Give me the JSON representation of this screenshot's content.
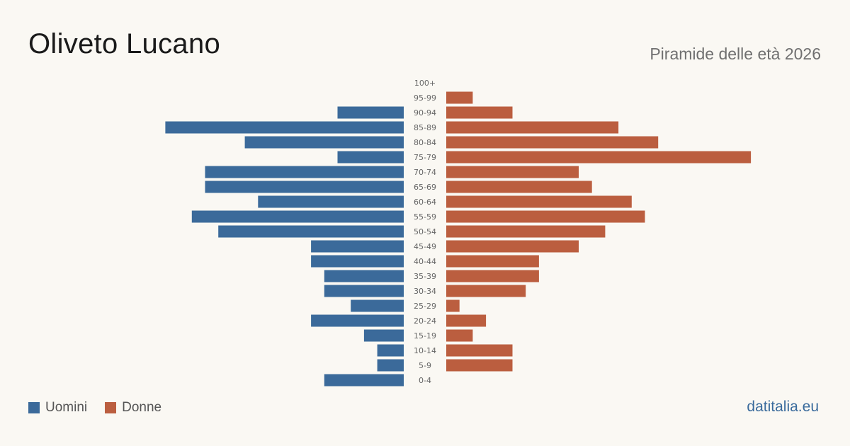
{
  "header": {
    "title": "Oliveto Lucano",
    "subtitle": "Piramide delle età 2026"
  },
  "legend": {
    "male_label": "Uomini",
    "female_label": "Donne"
  },
  "source": "datitalia.eu",
  "colors": {
    "male": "#3b6a9a",
    "female": "#bb5e3f",
    "background": "#faf8f3"
  },
  "chart_data": {
    "type": "bar",
    "orientation": "horizontal-pyramid",
    "categories": [
      "100+",
      "95-99",
      "90-94",
      "85-89",
      "80-84",
      "75-79",
      "70-74",
      "65-69",
      "60-64",
      "55-59",
      "50-54",
      "45-49",
      "40-44",
      "35-39",
      "30-34",
      "25-29",
      "20-24",
      "15-19",
      "10-14",
      "5-9",
      "0-4"
    ],
    "series": [
      {
        "name": "Uomini",
        "values": [
          0,
          0,
          5,
          18,
          12,
          5,
          15,
          15,
          11,
          16,
          14,
          7,
          7,
          6,
          6,
          4,
          7,
          3,
          2,
          2,
          6
        ]
      },
      {
        "name": "Donne",
        "values": [
          0,
          2,
          5,
          13,
          16,
          23,
          10,
          11,
          14,
          15,
          12,
          10,
          7,
          7,
          6,
          1,
          3,
          2,
          5,
          5,
          0
        ]
      }
    ],
    "xlim": [
      0,
      23
    ],
    "grid": false,
    "legend_position": "bottom-left"
  }
}
